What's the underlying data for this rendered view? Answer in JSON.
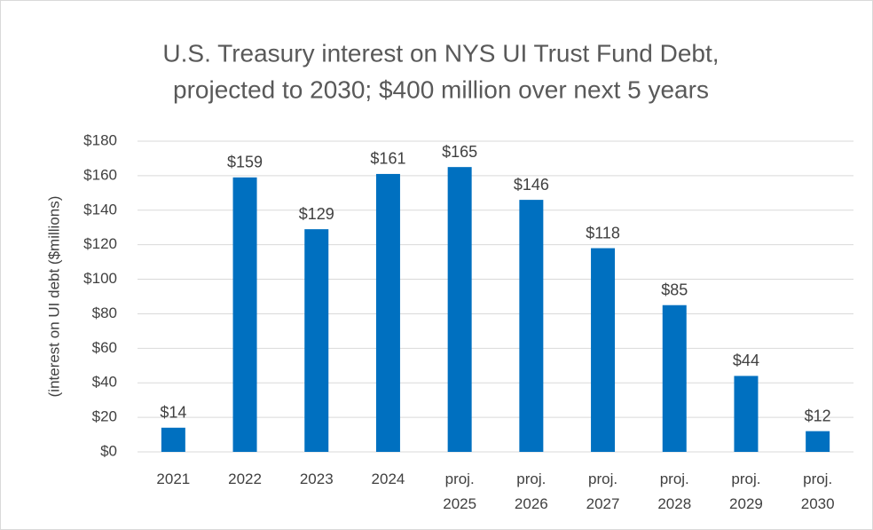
{
  "chart_data": {
    "type": "bar",
    "title": [
      "U.S. Treasury interest on NYS UI Trust Fund Debt,",
      "projected to 2030; $400 million over next 5 years"
    ],
    "ylabel": "(interest on UI debt ($millions)",
    "categories": [
      "2021",
      "2022",
      "2023",
      "2024",
      "proj. 2025",
      "proj. 2026",
      "proj. 2027",
      "proj. 2028",
      "proj. 2029",
      "proj. 2030"
    ],
    "values": [
      14,
      159,
      129,
      161,
      165,
      146,
      118,
      85,
      44,
      12
    ],
    "value_labels": [
      "$14",
      "$159",
      "$129",
      "$161",
      "$165",
      "$146",
      "$118",
      "$85",
      "$44",
      "$12"
    ],
    "color": "#0070c0",
    "ylim": [
      0,
      180
    ],
    "yticks": [
      {
        "value": 0,
        "label": "$0"
      },
      {
        "value": 20,
        "label": "$20"
      },
      {
        "value": 40,
        "label": "$40"
      },
      {
        "value": 60,
        "label": "$60"
      },
      {
        "value": 80,
        "label": "$80"
      },
      {
        "value": 100,
        "label": "$100"
      },
      {
        "value": 120,
        "label": "$120"
      },
      {
        "value": 140,
        "label": "$140"
      },
      {
        "value": 160,
        "label": "$160"
      },
      {
        "value": 180,
        "label": "$180"
      }
    ],
    "grid": true
  }
}
